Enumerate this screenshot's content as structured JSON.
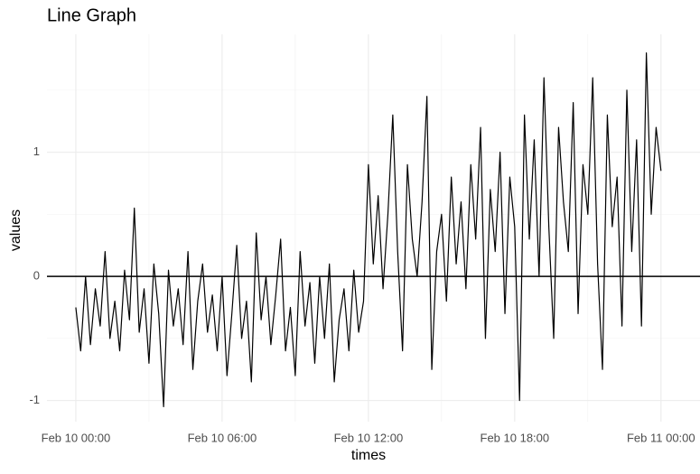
{
  "chart_data": {
    "type": "line",
    "title": "Line Graph",
    "xlabel": "times",
    "ylabel": "values",
    "color": "#000000",
    "grid": true,
    "hline": 0,
    "x": [
      "Feb 10 00:00",
      "Feb 10 00:12",
      "Feb 10 00:24",
      "Feb 10 00:36",
      "Feb 10 00:48",
      "Feb 10 01:00",
      "Feb 10 01:12",
      "Feb 10 01:24",
      "Feb 10 01:36",
      "Feb 10 01:48",
      "Feb 10 02:00",
      "Feb 10 02:12",
      "Feb 10 02:24",
      "Feb 10 02:36",
      "Feb 10 02:48",
      "Feb 10 03:00",
      "Feb 10 03:12",
      "Feb 10 03:24",
      "Feb 10 03:36",
      "Feb 10 03:48",
      "Feb 10 04:00",
      "Feb 10 04:12",
      "Feb 10 04:24",
      "Feb 10 04:36",
      "Feb 10 04:48",
      "Feb 10 05:00",
      "Feb 10 05:12",
      "Feb 10 05:24",
      "Feb 10 05:36",
      "Feb 10 05:48",
      "Feb 10 06:00",
      "Feb 10 06:12",
      "Feb 10 06:24",
      "Feb 10 06:36",
      "Feb 10 06:48",
      "Feb 10 07:00",
      "Feb 10 07:12",
      "Feb 10 07:24",
      "Feb 10 07:36",
      "Feb 10 07:48",
      "Feb 10 08:00",
      "Feb 10 08:12",
      "Feb 10 08:24",
      "Feb 10 08:36",
      "Feb 10 08:48",
      "Feb 10 09:00",
      "Feb 10 09:12",
      "Feb 10 09:24",
      "Feb 10 09:36",
      "Feb 10 09:48",
      "Feb 10 10:00",
      "Feb 10 10:12",
      "Feb 10 10:24",
      "Feb 10 10:36",
      "Feb 10 10:48",
      "Feb 10 11:00",
      "Feb 10 11:12",
      "Feb 10 11:24",
      "Feb 10 11:36",
      "Feb 10 11:48",
      "Feb 10 12:00",
      "Feb 10 12:12",
      "Feb 10 12:24",
      "Feb 10 12:36",
      "Feb 10 12:48",
      "Feb 10 13:00",
      "Feb 10 13:12",
      "Feb 10 13:24",
      "Feb 10 13:36",
      "Feb 10 13:48",
      "Feb 10 14:00",
      "Feb 10 14:12",
      "Feb 10 14:24",
      "Feb 10 14:36",
      "Feb 10 14:48",
      "Feb 10 15:00",
      "Feb 10 15:12",
      "Feb 10 15:24",
      "Feb 10 15:36",
      "Feb 10 15:48",
      "Feb 10 16:00",
      "Feb 10 16:12",
      "Feb 10 16:24",
      "Feb 10 16:36",
      "Feb 10 16:48",
      "Feb 10 17:00",
      "Feb 10 17:12",
      "Feb 10 17:24",
      "Feb 10 17:36",
      "Feb 10 17:48",
      "Feb 10 18:00",
      "Feb 10 18:12",
      "Feb 10 18:24",
      "Feb 10 18:36",
      "Feb 10 18:48",
      "Feb 10 19:00",
      "Feb 10 19:12",
      "Feb 10 19:24",
      "Feb 10 19:36",
      "Feb 10 19:48",
      "Feb 10 20:00",
      "Feb 10 20:12",
      "Feb 10 20:24",
      "Feb 10 20:36",
      "Feb 10 20:48",
      "Feb 10 21:00",
      "Feb 10 21:12",
      "Feb 10 21:24",
      "Feb 10 21:36",
      "Feb 10 21:48",
      "Feb 10 22:00",
      "Feb 10 22:12",
      "Feb 10 22:24",
      "Feb 10 22:36",
      "Feb 10 22:48",
      "Feb 10 23:00",
      "Feb 10 23:12",
      "Feb 10 23:24",
      "Feb 10 23:36",
      "Feb 10 23:48",
      "Feb 11 00:00"
    ],
    "values": [
      -0.25,
      -0.6,
      0.0,
      -0.55,
      -0.1,
      -0.4,
      0.2,
      -0.5,
      -0.2,
      -0.6,
      0.05,
      -0.35,
      0.55,
      -0.45,
      -0.1,
      -0.7,
      0.1,
      -0.3,
      -1.05,
      0.05,
      -0.4,
      -0.1,
      -0.55,
      0.2,
      -0.75,
      -0.2,
      0.1,
      -0.45,
      -0.15,
      -0.6,
      0.0,
      -0.8,
      -0.3,
      0.25,
      -0.5,
      -0.2,
      -0.85,
      0.35,
      -0.35,
      0.0,
      -0.55,
      -0.15,
      0.3,
      -0.6,
      -0.25,
      -0.8,
      0.2,
      -0.4,
      -0.05,
      -0.7,
      0.0,
      -0.5,
      0.1,
      -0.85,
      -0.35,
      -0.1,
      -0.6,
      0.05,
      -0.45,
      -0.2,
      0.9,
      0.1,
      0.65,
      -0.1,
      0.5,
      1.3,
      0.2,
      -0.6,
      0.9,
      0.3,
      0.0,
      0.6,
      1.45,
      -0.75,
      0.2,
      0.5,
      -0.2,
      0.8,
      0.1,
      0.6,
      -0.1,
      0.9,
      0.3,
      1.2,
      -0.5,
      0.7,
      0.2,
      1.0,
      -0.3,
      0.8,
      0.4,
      -1.0,
      1.3,
      0.3,
      1.1,
      0.0,
      1.6,
      0.4,
      -0.5,
      1.2,
      0.6,
      0.2,
      1.4,
      -0.3,
      0.9,
      0.5,
      1.6,
      0.1,
      -0.75,
      1.3,
      0.4,
      0.8,
      -0.4,
      1.5,
      0.2,
      1.1,
      -0.4,
      1.8,
      0.5,
      1.2,
      0.85
    ],
    "xlim": [
      "Feb 9 22:49",
      "Feb 11 01:36"
    ],
    "xticks": [
      "Feb 10 00:00",
      "Feb 10 06:00",
      "Feb 10 12:00",
      "Feb 10 18:00",
      "Feb 11 00:00"
    ],
    "ylim": [
      -1.17,
      1.95
    ],
    "yticks": [
      -1,
      0,
      1
    ]
  }
}
